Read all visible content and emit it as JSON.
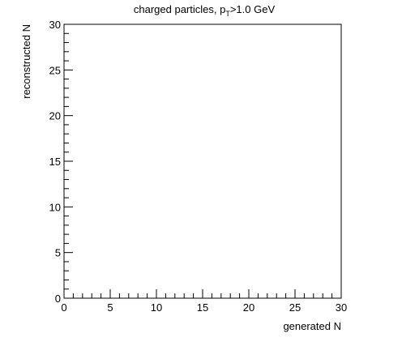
{
  "chart_data": {
    "type": "scatter",
    "title": "charged particles, p",
    "title_sub": "T",
    "title_rest": ">1.0 GeV",
    "xlabel": "generated  N",
    "ylabel": "reconstructed  N",
    "xlim": [
      0,
      30
    ],
    "ylim": [
      0,
      30
    ],
    "x_ticks": [
      0,
      5,
      10,
      15,
      20,
      25,
      30
    ],
    "y_ticks": [
      0,
      5,
      10,
      15,
      20,
      25,
      30
    ],
    "x_minor_step": 1,
    "y_minor_step": 1,
    "grid": false,
    "legend": "none",
    "series": []
  }
}
